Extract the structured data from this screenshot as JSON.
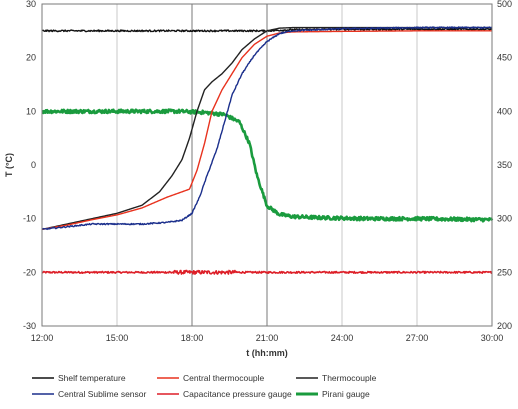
{
  "chart_data": {
    "type": "line",
    "title": "",
    "xlabel": "t (hh:mm)",
    "ylabel": "T (°C)",
    "y2label": "",
    "xlim": [
      12,
      30
    ],
    "ylim": [
      -30,
      30
    ],
    "y2lim": [
      200,
      500
    ],
    "x_ticks": [
      12,
      15,
      18,
      21,
      24,
      27,
      30
    ],
    "x_tick_labels": [
      "12:00",
      "15:00",
      "18:00",
      "21:00",
      "24:00",
      "27:00",
      "30:00"
    ],
    "y_ticks": [
      -30,
      -20,
      -10,
      0,
      10,
      20,
      30
    ],
    "y_tick_labels": [
      "-30",
      "-20",
      "-10",
      "0",
      "10",
      "20",
      "30"
    ],
    "y2_ticks": [
      200,
      250,
      300,
      350,
      400,
      450,
      500
    ],
    "y2_tick_labels": [
      "200",
      "250",
      "300",
      "350",
      "400",
      "450",
      "500"
    ],
    "grid": "vertical",
    "legend_position": "bottom",
    "series": [
      {
        "name": "Shelf temperature",
        "color": "#111111",
        "axis": "left",
        "noise": 0.15,
        "x": [
          12,
          21,
          22,
          24,
          30
        ],
        "y": [
          25,
          25,
          25.2,
          25.3,
          25.3
        ]
      },
      {
        "name": "Central thermocouple",
        "color": "#e8321e",
        "axis": "left",
        "noise": 0,
        "x": [
          12,
          13,
          14,
          15,
          16,
          17,
          17.6,
          17.9,
          18.2,
          18.5,
          18.8,
          19.2,
          19.6,
          20,
          20.5,
          21,
          21.5,
          22,
          24,
          27,
          30
        ],
        "y": [
          -12,
          -11.2,
          -10.2,
          -9.3,
          -8,
          -6,
          -5,
          -4.5,
          -1,
          4,
          10,
          14,
          17,
          20,
          22.5,
          24,
          24.6,
          24.8,
          24.9,
          25,
          25
        ]
      },
      {
        "name": "Thermocouple",
        "color": "#222222",
        "axis": "left",
        "noise": 0,
        "x": [
          12,
          13,
          14,
          15,
          16,
          16.7,
          17.2,
          17.6,
          17.9,
          18.2,
          18.5,
          18.8,
          19.2,
          19.6,
          20,
          20.5,
          21,
          21.5,
          22,
          24,
          30
        ],
        "y": [
          -12,
          -11,
          -10,
          -9,
          -7.5,
          -5,
          -2,
          1,
          5,
          10,
          14,
          15.5,
          17,
          19,
          21.5,
          23.5,
          25,
          25.5,
          25.6,
          25.6,
          25.6
        ]
      },
      {
        "name": "Central Sublime sensor",
        "color": "#1b2f8c",
        "axis": "left",
        "noise": 0.12,
        "x": [
          12,
          13,
          14,
          15,
          16,
          17,
          17.6,
          18,
          18.3,
          18.6,
          19,
          19.3,
          19.6,
          20,
          20.5,
          21,
          21.5,
          22,
          24,
          27,
          30
        ],
        "y": [
          -12,
          -11.5,
          -11,
          -11,
          -11,
          -10.7,
          -10.3,
          -9,
          -6,
          -2,
          3,
          8,
          13,
          17,
          20.5,
          23,
          24.5,
          25,
          25.4,
          25.6,
          25.6
        ]
      },
      {
        "name": "Capacitance pressure gauge",
        "color": "#dd1f28",
        "axis": "right",
        "noise": 0.8,
        "x": [
          12,
          30
        ],
        "y": [
          250,
          250
        ]
      },
      {
        "name": "Pirani gauge",
        "color": "#1a9b3e",
        "axis": "right",
        "noise": 1.6,
        "x": [
          12,
          14,
          16,
          17.5,
          18.5,
          19.3,
          19.9,
          20.3,
          20.6,
          21,
          21.5,
          22,
          23,
          25,
          27,
          30
        ],
        "y": [
          400,
          400,
          400,
          400,
          399,
          397,
          390,
          370,
          340,
          312,
          304,
          302,
          301,
          300,
          300,
          299
        ]
      }
    ]
  }
}
